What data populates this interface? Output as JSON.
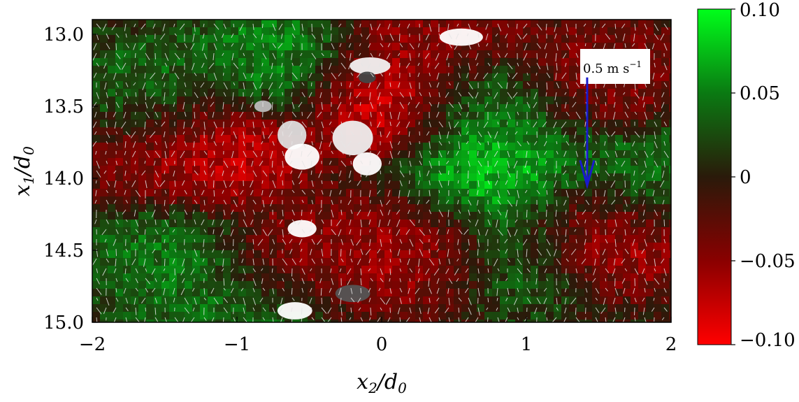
{
  "chart_data": {
    "type": "heatmap",
    "title": "",
    "xlabel": "x2/d0",
    "ylabel": "x1/d0",
    "xlim": [
      -2,
      2
    ],
    "ylim": [
      12.9,
      15.0
    ],
    "y_inverted": true,
    "x_ticks": [
      -2,
      -1,
      0,
      1,
      2
    ],
    "x_tick_labels": [
      "−2",
      "−1",
      "0",
      "1",
      "2"
    ],
    "y_ticks": [
      13.0,
      13.5,
      14.0,
      14.5,
      15.0
    ],
    "y_tick_labels": [
      "13.0",
      "13.5",
      "14.0",
      "14.5",
      "15.0"
    ],
    "colorbar": {
      "range": [
        -0.1,
        0.1
      ],
      "ticks": [
        0.1,
        0.05,
        0,
        -0.05,
        -0.1
      ],
      "tick_labels": [
        "0.10",
        "0.05",
        "0",
        "−0.05",
        "−0.10"
      ],
      "colors": {
        "max": "#00ff1a",
        "mid": "#2a1a0a",
        "min": "#ff0000"
      }
    },
    "reference_vector": {
      "label": "0.5 m s",
      "exponent": "−1",
      "magnitude": 0.5,
      "color": "#1a1acc",
      "x": 1.42,
      "y_start": 13.3,
      "y_end": 14.05
    },
    "regions": [
      {
        "x": 0.35,
        "y": 13.0,
        "value": -0.05
      },
      {
        "x": 0.7,
        "y": 13.55,
        "value": 0.06
      },
      {
        "x": 0.75,
        "y": 14.0,
        "value": 0.09
      },
      {
        "x": -1.6,
        "y": 13.45,
        "value": 0.05
      },
      {
        "x": -1.55,
        "y": 13.8,
        "value": -0.05
      },
      {
        "x": -1.15,
        "y": 13.8,
        "value": -0.09
      },
      {
        "x": -0.7,
        "y": 13.2,
        "value": 0.06
      },
      {
        "x": 0.05,
        "y": 13.45,
        "value": -0.1
      },
      {
        "x": -1.5,
        "y": 14.55,
        "value": 0.05
      },
      {
        "x": -0.55,
        "y": 14.6,
        "value": -0.06
      },
      {
        "x": 0.95,
        "y": 14.55,
        "value": 0.05
      },
      {
        "x": 1.5,
        "y": 14.4,
        "value": -0.08
      },
      {
        "x": 1.75,
        "y": 14.0,
        "value": 0.05
      },
      {
        "x": -0.9,
        "y": 14.9,
        "value": 0.05
      },
      {
        "x": 1.5,
        "y": 13.3,
        "value": -0.05
      },
      {
        "x": 0.3,
        "y": 14.5,
        "value": -0.07
      }
    ]
  }
}
